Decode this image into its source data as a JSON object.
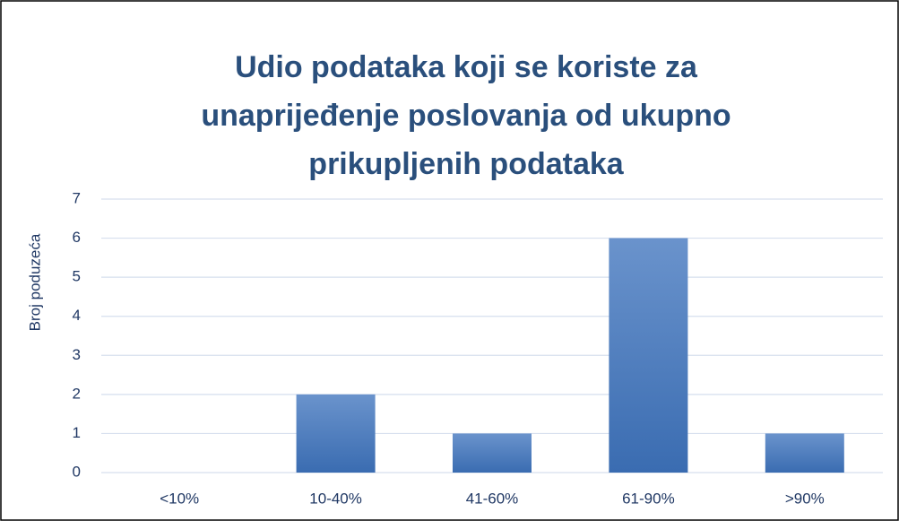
{
  "chart_data": {
    "type": "bar",
    "title": "Udio podataka koji se koriste za unaprijeđenje poslovanja od ukupno prikupljenih podataka",
    "y_label": "Broj poduzeća",
    "categories": [
      "<10%",
      "10-40%",
      "41-60%",
      "61-90%",
      ">90%"
    ],
    "values": [
      0,
      2,
      1,
      6,
      1
    ],
    "color": "#4a7bbf",
    "ylim": [
      0,
      7
    ],
    "yticks": [
      0,
      1,
      2,
      3,
      4,
      5,
      6,
      7
    ],
    "grid": true
  }
}
